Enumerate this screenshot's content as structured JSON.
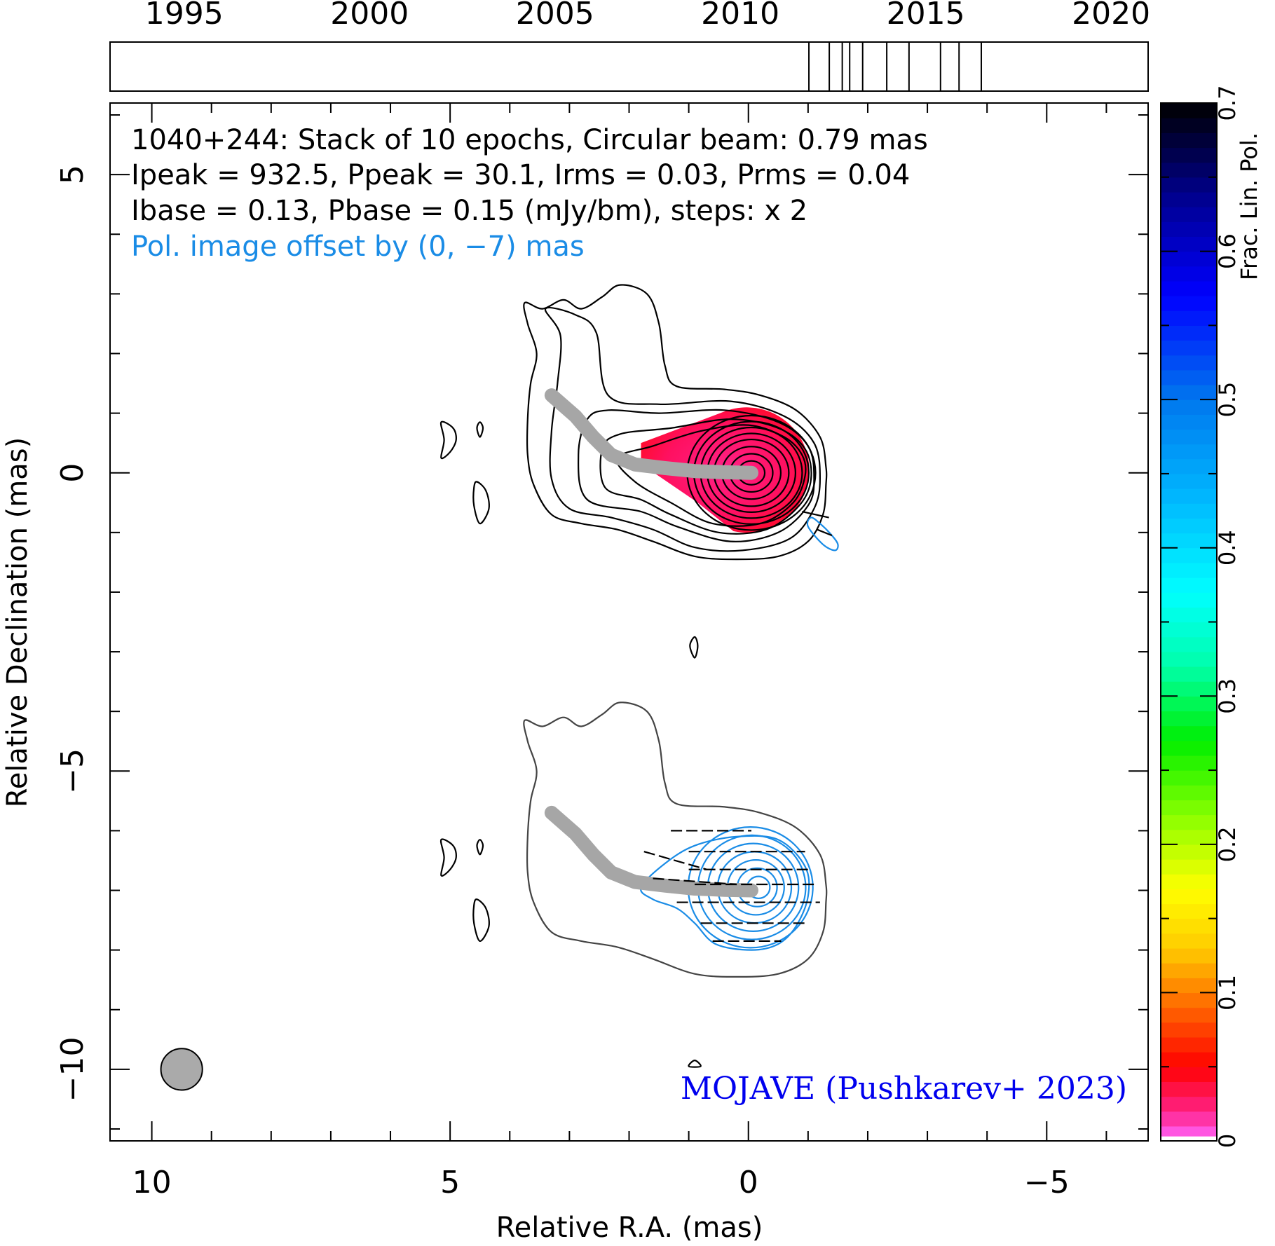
{
  "colors": {
    "stokes_i": "#000000",
    "stokes_i_lower": "#444444",
    "pol_contour": "#1a8ce6",
    "offset_note": "#1a8ce6",
    "credit": "#0000ee",
    "ridge": "#a6a6a6",
    "beam": "#aaaaaa",
    "frac_pol_core": "#ff1060"
  },
  "info": {
    "line1": "1040+244: Stack of 10 epochs, Circular beam: 0.79 mas",
    "line2": "Ipeak = 932.5, Ppeak = 30.1, Irms = 0.03, Prms = 0.04",
    "line3": "Ibase = 0.13, Pbase = 0.15 (mJy/bm), steps: x 2",
    "offset_note": "Pol. image offset by (0, −7) mas",
    "credit": "MOJAVE (Pushkarev+ 2023)"
  },
  "chart_data": [
    {
      "type": "timeline",
      "xlim": [
        1993,
        2021
      ],
      "tick_labels": [
        "1995",
        "2000",
        "2005",
        "2010",
        "2015",
        "2020"
      ],
      "tick_values": [
        1995,
        2000,
        2005,
        2010,
        2015,
        2020
      ],
      "epochs": [
        2011.85,
        2012.4,
        2012.75,
        2012.95,
        2013.3,
        2013.95,
        2014.55,
        2015.4,
        2015.9,
        2016.5
      ]
    },
    {
      "type": "contour",
      "xlabel": "Relative R.A. (mas)",
      "ylabel": "Relative Declination (mas)",
      "xlim": [
        10.7,
        -6.7
      ],
      "ylim": [
        -11.2,
        6.2
      ],
      "x_tick_labels": [
        "10",
        "5",
        "0",
        "−5"
      ],
      "x_tick_values": [
        10,
        5,
        0,
        -5
      ],
      "y_tick_labels": [
        "5",
        "0",
        "−5",
        "−10"
      ],
      "y_tick_values": [
        5,
        0,
        -5,
        -10
      ],
      "beam_diameter_mas": 0.79,
      "beam_center": [
        9.5,
        -10
      ],
      "pol_offset": [
        0,
        -7
      ],
      "ridge_line": [
        [
          -0.05,
          0
        ],
        [
          0.4,
          0.01
        ],
        [
          0.9,
          0.03
        ],
        [
          1.4,
          0.08
        ],
        [
          1.9,
          0.14
        ],
        [
          2.3,
          0.3
        ],
        [
          2.6,
          0.6
        ],
        [
          2.9,
          0.95
        ],
        [
          3.3,
          1.3
        ]
      ],
      "stokes_i_outer": [
        [
          -1.3,
          -0.2
        ],
        [
          -1.25,
          -0.7
        ],
        [
          -1.0,
          -1.15
        ],
        [
          -0.5,
          -1.4
        ],
        [
          0.2,
          -1.45
        ],
        [
          0.9,
          -1.4
        ],
        [
          1.6,
          -1.15
        ],
        [
          2.2,
          -0.95
        ],
        [
          2.8,
          -0.85
        ],
        [
          3.3,
          -0.7
        ],
        [
          3.6,
          -0.2
        ],
        [
          3.7,
          0.3
        ],
        [
          3.7,
          0.9
        ],
        [
          3.65,
          1.5
        ],
        [
          3.55,
          2.0
        ],
        [
          3.7,
          2.5
        ],
        [
          3.75,
          2.85
        ],
        [
          3.45,
          2.75
        ],
        [
          3.1,
          2.9
        ],
        [
          2.8,
          2.75
        ],
        [
          2.45,
          2.95
        ],
        [
          2.15,
          3.15
        ],
        [
          1.7,
          3.0
        ],
        [
          1.5,
          2.5
        ],
        [
          1.4,
          1.8
        ],
        [
          1.2,
          1.45
        ],
        [
          0.4,
          1.4
        ],
        [
          -0.2,
          1.3
        ],
        [
          -0.8,
          1.05
        ],
        [
          -1.2,
          0.6
        ],
        [
          -1.3,
          0.1
        ]
      ],
      "stokes_i_inner": [
        [
          [
            -1.2,
            -0.1
          ],
          [
            -1.1,
            -0.6
          ],
          [
            -0.7,
            -1.1
          ],
          [
            0.1,
            -1.3
          ],
          [
            0.9,
            -1.25
          ],
          [
            1.6,
            -0.95
          ],
          [
            2.3,
            -0.75
          ],
          [
            3.0,
            -0.6
          ],
          [
            3.3,
            -0.1
          ],
          [
            3.3,
            0.7
          ],
          [
            3.2,
            1.5
          ],
          [
            3.15,
            2.3
          ],
          [
            3.4,
            2.75
          ],
          [
            2.9,
            2.65
          ],
          [
            2.55,
            2.35
          ],
          [
            2.35,
            1.3
          ],
          [
            1.5,
            1.15
          ],
          [
            0.3,
            1.2
          ],
          [
            -0.6,
            0.95
          ],
          [
            -1.1,
            0.5
          ]
        ],
        [
          [
            -1.1,
            -0.1
          ],
          [
            -1.0,
            -0.55
          ],
          [
            -0.5,
            -1.0
          ],
          [
            0.3,
            -1.15
          ],
          [
            1.2,
            -0.9
          ],
          [
            1.8,
            -0.65
          ],
          [
            2.7,
            -0.45
          ],
          [
            2.85,
            0.3
          ],
          [
            2.7,
            0.9
          ],
          [
            2.35,
            1.05
          ],
          [
            1.5,
            1.0
          ],
          [
            0.4,
            1.05
          ],
          [
            -0.5,
            0.85
          ],
          [
            -1.0,
            0.45
          ]
        ],
        [
          [
            -1.05,
            -0.1
          ],
          [
            -0.85,
            -0.55
          ],
          [
            -0.3,
            -0.95
          ],
          [
            0.5,
            -1.0
          ],
          [
            1.3,
            -0.7
          ],
          [
            1.8,
            -0.45
          ],
          [
            2.4,
            -0.25
          ],
          [
            2.45,
            0.4
          ],
          [
            2.15,
            0.65
          ],
          [
            1.3,
            0.75
          ],
          [
            0.3,
            0.9
          ],
          [
            -0.5,
            0.75
          ],
          [
            -0.95,
            0.4
          ]
        ],
        [
          [
            -0.95,
            -0.05
          ],
          [
            -0.75,
            -0.5
          ],
          [
            -0.2,
            -0.85
          ],
          [
            0.6,
            -0.85
          ],
          [
            1.3,
            -0.5
          ],
          [
            1.9,
            -0.15
          ],
          [
            2.2,
            0.25
          ],
          [
            1.6,
            0.45
          ],
          [
            0.8,
            0.7
          ],
          [
            0.0,
            0.8
          ],
          [
            -0.6,
            0.6
          ],
          [
            -0.9,
            0.3
          ]
        ]
      ],
      "stokes_i_core_radii": [
        0.2,
        0.32,
        0.44,
        0.56,
        0.66,
        0.76,
        0.86,
        0.96
      ],
      "stokes_i_islands": [
        [
          [
            5.15,
            0.85
          ],
          [
            4.95,
            0.75
          ],
          [
            4.9,
            0.55
          ],
          [
            5.0,
            0.35
          ],
          [
            5.15,
            0.25
          ],
          [
            5.1,
            0.55
          ]
        ],
        [
          [
            4.5,
            0.85
          ],
          [
            4.45,
            0.75
          ],
          [
            4.5,
            0.6
          ],
          [
            4.55,
            0.75
          ]
        ],
        [
          [
            4.55,
            -0.15
          ],
          [
            4.4,
            -0.3
          ],
          [
            4.35,
            -0.6
          ],
          [
            4.5,
            -0.85
          ],
          [
            4.6,
            -0.55
          ],
          [
            4.6,
            -0.25
          ]
        ],
        [
          [
            0.9,
            -2.75
          ],
          [
            0.85,
            -2.9
          ],
          [
            0.9,
            -3.1
          ],
          [
            0.98,
            -2.9
          ]
        ],
        [
          [
            0.9,
            -9.85
          ],
          [
            0.8,
            -9.95
          ],
          [
            1.0,
            -9.95
          ]
        ]
      ],
      "pol_core_center": [
        -0.2,
        0.05
      ],
      "pol_core_radii": [
        0.2,
        0.35,
        0.5,
        0.65,
        0.8,
        0.95,
        1.1
      ],
      "pol_outer": [
        [
          1.8,
          0.05
        ],
        [
          1.4,
          0.45
        ],
        [
          0.9,
          0.75
        ],
        [
          0.2,
          0.9
        ],
        [
          -0.5,
          0.85
        ],
        [
          -0.95,
          0.4
        ],
        [
          -1.0,
          -0.1
        ],
        [
          -0.8,
          -0.6
        ],
        [
          -0.5,
          -0.9
        ],
        [
          -0.05,
          -1.0
        ],
        [
          0.55,
          -0.9
        ],
        [
          0.9,
          -0.55
        ],
        [
          1.2,
          -0.3
        ],
        [
          1.6,
          -0.15
        ]
      ],
      "evpa_ticks": [
        [
          1.3,
          1.0,
          -0.05,
          1.0
        ],
        [
          1.75,
          0.65,
          0.7,
          0.35
        ],
        [
          1.6,
          0.2,
          0.2,
          0.1
        ],
        [
          1.0,
          0.65,
          -0.95,
          0.65
        ],
        [
          1.0,
          0.35,
          -1.0,
          0.35
        ],
        [
          0.9,
          0.1,
          -1.15,
          0.1
        ],
        [
          1.2,
          -0.2,
          -1.2,
          -0.2
        ],
        [
          0.8,
          -0.55,
          -0.95,
          -0.55
        ],
        [
          0.6,
          -0.85,
          -0.55,
          -0.85
        ]
      ],
      "offset_pol_islands": [
        [
          [
            -1.05,
            -0.75
          ],
          [
            -1.2,
            -0.85
          ],
          [
            -1.4,
            -1.05
          ],
          [
            -1.5,
            -1.2
          ],
          [
            -1.45,
            -1.3
          ],
          [
            -1.25,
            -1.2
          ],
          [
            -1.0,
            -0.9
          ]
        ]
      ],
      "offset_evpa_ticks": [
        [
          -1.35,
          -0.75,
          -0.9,
          -0.65
        ],
        [
          -1.4,
          -1.05,
          -1.15,
          -0.95
        ]
      ],
      "frac_pol_core": {
        "center": [
          -0.05,
          0.05
        ],
        "radius_x": 1.05,
        "radius_y": 1.05,
        "extension_to_ra": 1.8
      }
    },
    {
      "type": "colorbar",
      "label": "Frac. Lin. Pol.",
      "range": [
        0,
        0.7
      ],
      "tick_labels": [
        "0",
        "0.1",
        "0.2",
        "0.3",
        "0.4",
        "0.5",
        "0.6",
        "0.7"
      ],
      "tick_values": [
        0,
        0.1,
        0.2,
        0.3,
        0.4,
        0.5,
        0.6,
        0.7
      ],
      "stops": [
        {
          "v": 0.0,
          "c": "#ff66ff"
        },
        {
          "v": 0.02,
          "c": "#ff2288"
        },
        {
          "v": 0.05,
          "c": "#ff0000"
        },
        {
          "v": 0.09,
          "c": "#ff6600"
        },
        {
          "v": 0.13,
          "c": "#ffcc00"
        },
        {
          "v": 0.17,
          "c": "#ffff00"
        },
        {
          "v": 0.22,
          "c": "#88ff00"
        },
        {
          "v": 0.27,
          "c": "#00ee00"
        },
        {
          "v": 0.32,
          "c": "#00ffaa"
        },
        {
          "v": 0.37,
          "c": "#00ffff"
        },
        {
          "v": 0.43,
          "c": "#00bbff"
        },
        {
          "v": 0.5,
          "c": "#0077ee"
        },
        {
          "v": 0.57,
          "c": "#0000ff"
        },
        {
          "v": 0.64,
          "c": "#000088"
        },
        {
          "v": 0.7,
          "c": "#000000"
        }
      ]
    }
  ]
}
